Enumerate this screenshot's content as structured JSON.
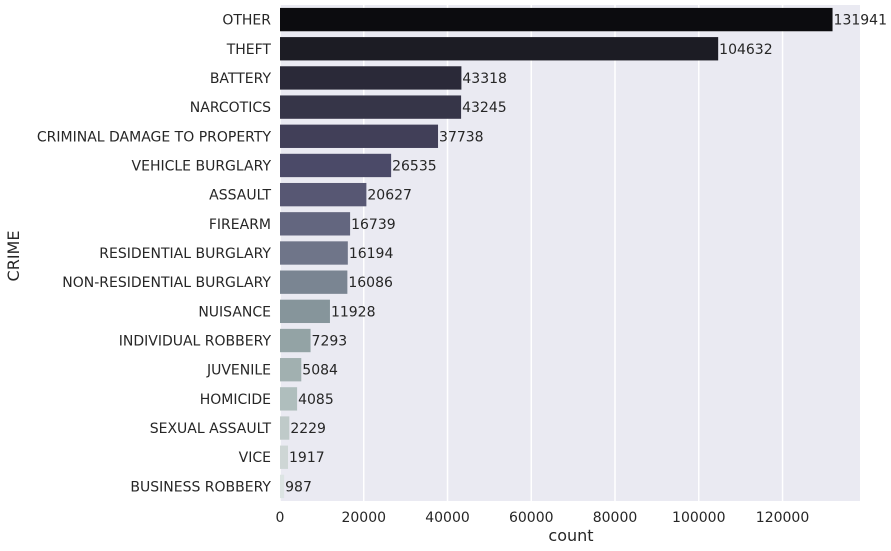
{
  "chart_data": {
    "type": "bar",
    "orientation": "horizontal",
    "xlabel": "count",
    "ylabel": "CRIME",
    "xlim": [
      0,
      138500
    ],
    "x_ticks": [
      0,
      20000,
      40000,
      60000,
      80000,
      100000,
      120000
    ],
    "x_tick_labels": [
      "0",
      "20000",
      "40000",
      "60000",
      "80000",
      "100000",
      "120000"
    ],
    "grid": "vertical",
    "background": "#eaeaf2",
    "categories": [
      "OTHER",
      "THEFT",
      "BATTERY",
      "NARCOTICS",
      "CRIMINAL DAMAGE TO PROPERTY",
      "VEHICLE BURGLARY",
      "ASSAULT",
      "FIREARM",
      "RESIDENTIAL BURGLARY",
      "NON-RESIDENTIAL BURGLARY",
      "NUISANCE",
      "INDIVIDUAL ROBBERY",
      "JUVENILE",
      "HOMICIDE",
      "SEXUAL ASSAULT",
      "VICE",
      "BUSINESS ROBBERY"
    ],
    "values": [
      131941,
      104632,
      43318,
      43245,
      37738,
      26535,
      20627,
      16739,
      16194,
      16086,
      11928,
      7293,
      5084,
      4085,
      2229,
      1917,
      987
    ],
    "data_labels": [
      "131941",
      "104632",
      "43318",
      "43245",
      "37738",
      "26535",
      "20627",
      "16739",
      "16194",
      "16086",
      "11928",
      "7293",
      "5084",
      "4085",
      "2229",
      "1917",
      "987"
    ],
    "colors": [
      "#0c0c0f",
      "#1c1c24",
      "#2a2938",
      "#363548",
      "#413f58",
      "#4b4a68",
      "#575773",
      "#63667f",
      "#6f7589",
      "#7a8592",
      "#86959b",
      "#93a3a5",
      "#a1b0b0",
      "#afbebd",
      "#bfcac9",
      "#ced6d5",
      "#dce4e3"
    ]
  }
}
